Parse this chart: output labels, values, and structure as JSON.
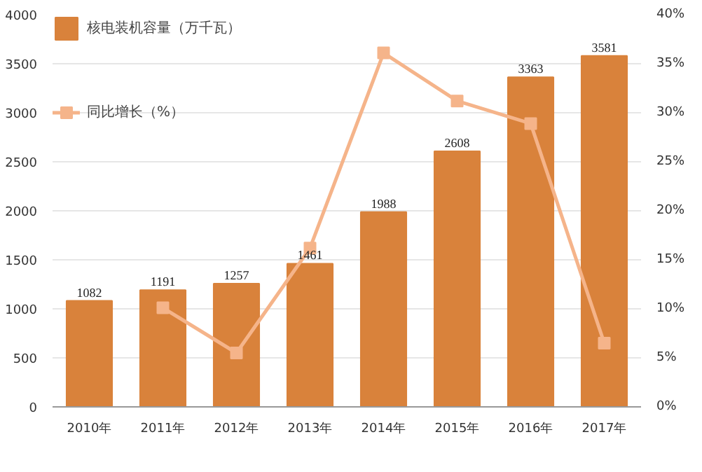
{
  "chart_data": {
    "type": "bar",
    "categories": [
      "2010年",
      "2011年",
      "2012年",
      "2013年",
      "2014年",
      "2015年",
      "2016年",
      "2017年"
    ],
    "series": [
      {
        "name": "核电装机容量（万千瓦）",
        "type": "bar",
        "color": "#d9823b",
        "values": [
          1082,
          1191,
          1257,
          1461,
          1988,
          2608,
          3363,
          3581
        ],
        "data_labels": true
      },
      {
        "name": "同比增长（%）",
        "type": "line",
        "axis": "y2",
        "color": "#f5b48a",
        "marker": "square",
        "values": [
          null,
          10.1,
          5.5,
          16.2,
          36.1,
          31.2,
          28.9,
          6.5
        ]
      }
    ],
    "ylim": [
      0,
      4000
    ],
    "yticks": [
      0,
      500,
      1000,
      1500,
      2000,
      2500,
      3000,
      3500,
      4000
    ],
    "y2lim": [
      0,
      40
    ],
    "y2ticks": [
      {
        "value": 0,
        "label": "0%"
      },
      {
        "value": 5,
        "label": "5%"
      },
      {
        "value": 10,
        "label": "10%"
      },
      {
        "value": 15,
        "label": "15%"
      },
      {
        "value": 20,
        "label": "20%"
      },
      {
        "value": 25,
        "label": "25%"
      },
      {
        "value": 30,
        "label": "30%"
      },
      {
        "value": 35,
        "label": "35%"
      },
      {
        "value": 40,
        "label": "40%"
      }
    ],
    "grid": "y",
    "legend": "top left"
  }
}
